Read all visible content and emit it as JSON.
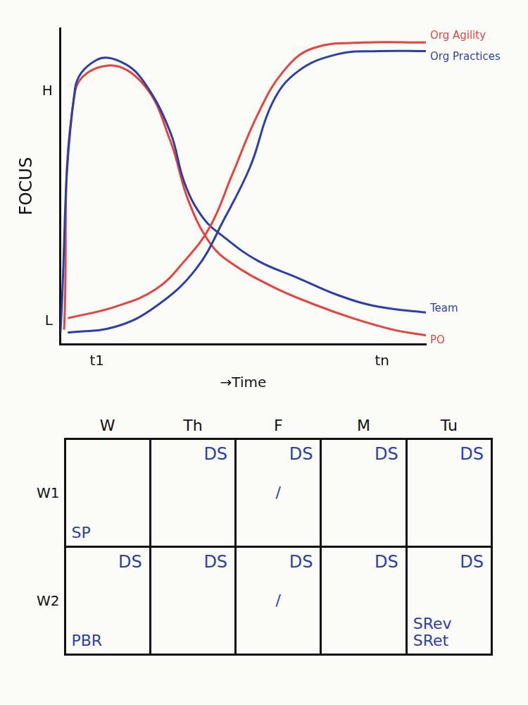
{
  "chart_data": {
    "type": "line",
    "x_label": "→Time",
    "y_label": "FOCUS",
    "xlim": [
      0,
      100
    ],
    "xticks": [
      {
        "value": 10,
        "label": "t1"
      },
      {
        "value": 88,
        "label": "tn"
      }
    ],
    "ylim": [
      0,
      110
    ],
    "yticks": [
      {
        "value": 8,
        "label": "L"
      },
      {
        "value": 88,
        "label": "H"
      }
    ],
    "grid": false,
    "series": [
      {
        "name": "Org Agility",
        "color": "#e8423f",
        "x": [
          2,
          15,
          26,
          34,
          41,
          47,
          54,
          61,
          69,
          83,
          100
        ],
        "values": [
          9,
          13,
          19,
          29,
          41,
          59,
          80,
          95,
          103,
          105,
          105
        ]
      },
      {
        "name": "Org Practices",
        "color": "#2b3fa8",
        "x": [
          2,
          15,
          26,
          37,
          45,
          52,
          58,
          65,
          76,
          87,
          100
        ],
        "values": [
          4,
          6,
          13,
          26,
          44,
          62,
          84,
          95,
          101,
          102,
          102
        ]
      },
      {
        "name": "Team",
        "color": "#2b3fa8",
        "x": [
          0,
          4,
          10,
          17,
          23,
          30,
          34,
          39,
          45,
          54,
          65,
          76,
          87,
          100
        ],
        "values": [
          4,
          89,
          99,
          98,
          91,
          74,
          56,
          44,
          37,
          29,
          23,
          17,
          13,
          11
        ]
      },
      {
        "name": "PO",
        "color": "#e8423f",
        "x": [
          1,
          4,
          13,
          23,
          30,
          35,
          41,
          47,
          58,
          69,
          80,
          91,
          100
        ],
        "values": [
          5,
          88,
          97,
          90,
          71,
          50,
          35,
          28,
          20,
          14,
          9,
          5,
          3
        ]
      }
    ]
  },
  "table": {
    "columns": [
      "W",
      "Th",
      "F",
      "M",
      "Tu"
    ],
    "rows": [
      {
        "label": "W1",
        "cells": [
          {
            "bottom": [
              "SP"
            ]
          },
          {
            "top": [
              "DS"
            ]
          },
          {
            "top": [
              "DS"
            ],
            "middle": [
              "/"
            ]
          },
          {
            "top": [
              "DS"
            ]
          },
          {
            "top": [
              "DS"
            ]
          }
        ]
      },
      {
        "label": "W2",
        "cells": [
          {
            "top": [
              "DS"
            ],
            "bottom": [
              "PBR"
            ]
          },
          {
            "top": [
              "DS"
            ]
          },
          {
            "top": [
              "DS"
            ],
            "middle": [
              "/"
            ]
          },
          {
            "top": [
              "DS"
            ]
          },
          {
            "top": [
              "DS"
            ],
            "bottom": [
              "SRev",
              "SRet"
            ]
          }
        ]
      }
    ]
  }
}
